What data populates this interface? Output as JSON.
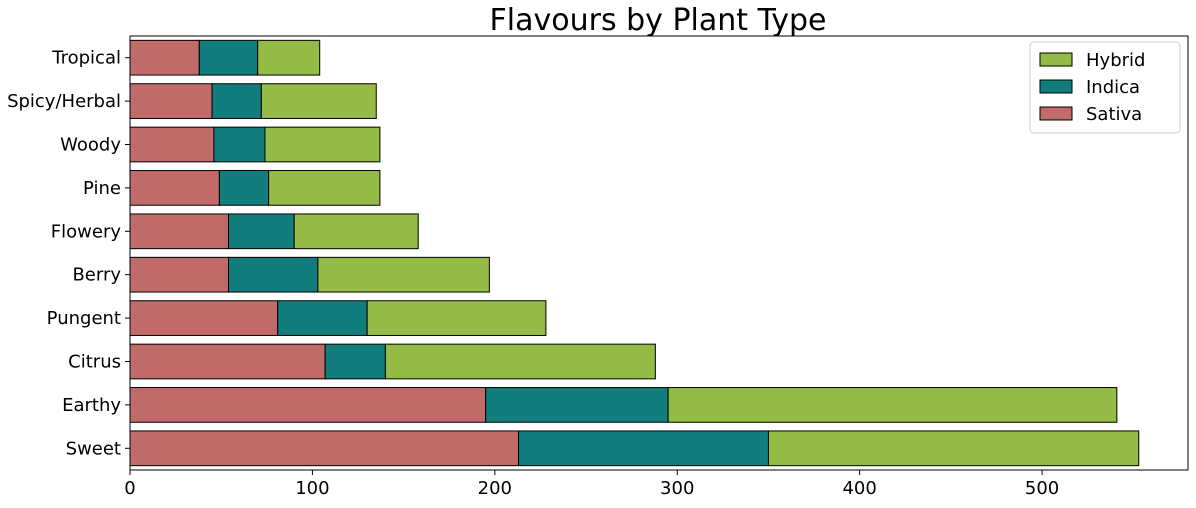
{
  "chart_data": {
    "type": "bar",
    "orientation": "horizontal",
    "stacked": true,
    "title": "Flavours by Plant Type",
    "xlabel": "",
    "ylabel": "",
    "xlim": [
      0,
      580
    ],
    "xticks": [
      0,
      100,
      200,
      300,
      400,
      500
    ],
    "grid": false,
    "legend_position": "top-right",
    "categories": [
      "Sweet",
      "Earthy",
      "Citrus",
      "Pungent",
      "Berry",
      "Flowery",
      "Pine",
      "Woody",
      "Spicy/Herbal",
      "Tropical"
    ],
    "series": [
      {
        "name": "Sativa",
        "color": "#c06a6a",
        "values": [
          213,
          195,
          107,
          81,
          54,
          54,
          49,
          46,
          45,
          38
        ]
      },
      {
        "name": "Indica",
        "color": "#127d7d",
        "values": [
          137,
          100,
          33,
          49,
          49,
          36,
          27,
          28,
          27,
          32
        ]
      },
      {
        "name": "Hybrid",
        "color": "#94bb46",
        "values": [
          203,
          246,
          148,
          98,
          94,
          68,
          61,
          63,
          63,
          34
        ]
      }
    ],
    "legend_order": [
      "Hybrid",
      "Indica",
      "Sativa"
    ]
  }
}
